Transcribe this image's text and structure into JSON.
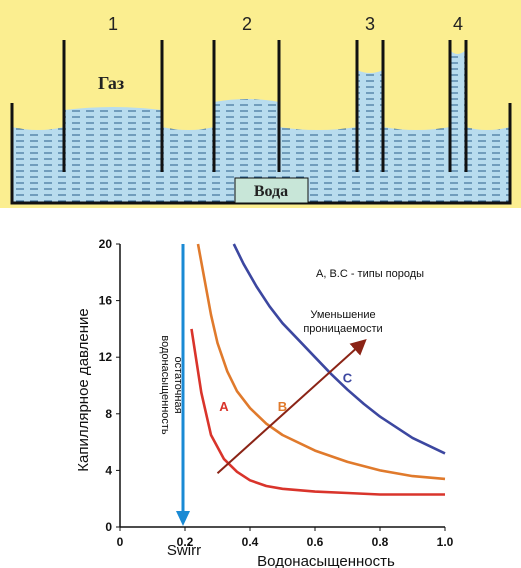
{
  "top": {
    "tube_labels": [
      "1",
      "2",
      "3",
      "4"
    ],
    "gas_label": "Газ",
    "water_label": "Вода",
    "colors": {
      "background": "#fbee90",
      "water": "#b8dcee",
      "dash": "#2a5e8a",
      "wall": "#111111"
    }
  },
  "chart_data": {
    "type": "line",
    "xlabel": "Водонасыщенность",
    "ylabel": "Капиллярное давление",
    "xlim": [
      0,
      1.0
    ],
    "ylim": [
      0,
      20
    ],
    "x_ticks": [
      "0",
      "0.2",
      "0.4",
      "0.6",
      "0.8",
      "1.0"
    ],
    "y_ticks": [
      "0",
      "4",
      "8",
      "12",
      "16",
      "20"
    ],
    "grid": false,
    "legend_text": "A, B.C - типы породы",
    "arrow_label": "Уменьшение проницаемости",
    "swirr_label": "Swirr",
    "swirr_x": 0.2,
    "swirr_axis_label": "остаточная водонасыщенность",
    "arrow": {
      "from": [
        0.3,
        3.8
      ],
      "to": [
        0.75,
        13.1
      ]
    },
    "series": [
      {
        "name": "A",
        "color": "#d9342b",
        "x": [
          0.22,
          0.25,
          0.28,
          0.32,
          0.36,
          0.4,
          0.45,
          0.5,
          0.6,
          0.7,
          0.8,
          0.9,
          1.0
        ],
        "y": [
          14.0,
          9.5,
          6.5,
          4.8,
          3.9,
          3.3,
          2.9,
          2.7,
          2.5,
          2.4,
          2.3,
          2.3,
          2.3
        ]
      },
      {
        "name": "B",
        "color": "#e07a2c",
        "x": [
          0.24,
          0.26,
          0.28,
          0.3,
          0.33,
          0.36,
          0.4,
          0.45,
          0.5,
          0.6,
          0.7,
          0.8,
          0.9,
          1.0
        ],
        "y": [
          20.0,
          17.5,
          15.0,
          13.0,
          11.0,
          9.6,
          8.4,
          7.3,
          6.5,
          5.4,
          4.6,
          4.0,
          3.6,
          3.4
        ]
      },
      {
        "name": "C",
        "color": "#3c47a0",
        "x": [
          0.35,
          0.38,
          0.42,
          0.46,
          0.5,
          0.55,
          0.6,
          0.65,
          0.7,
          0.75,
          0.8,
          0.9,
          1.0
        ],
        "y": [
          20.0,
          18.6,
          17.0,
          15.6,
          14.4,
          13.2,
          12.0,
          10.8,
          9.7,
          8.7,
          7.8,
          6.3,
          5.2
        ]
      }
    ],
    "series_label_pos": {
      "A": [
        0.32,
        8.2
      ],
      "B": [
        0.5,
        8.2
      ],
      "C": [
        0.7,
        10.2
      ]
    }
  }
}
